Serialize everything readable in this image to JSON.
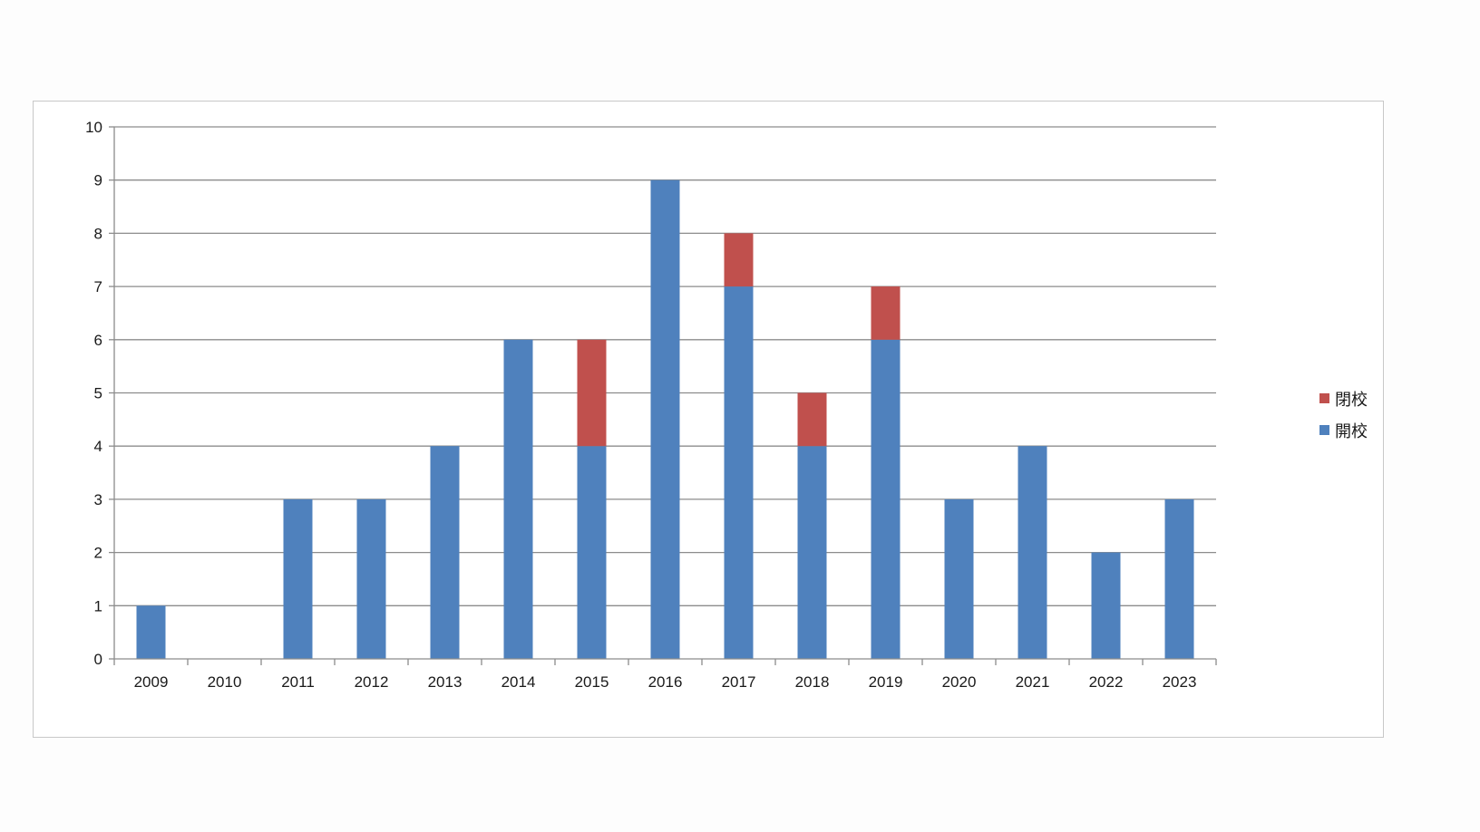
{
  "chart_data": {
    "type": "bar",
    "stacked": true,
    "categories": [
      "2009",
      "2010",
      "2011",
      "2012",
      "2013",
      "2014",
      "2015",
      "2016",
      "2017",
      "2018",
      "2019",
      "2020",
      "2021",
      "2022",
      "2023"
    ],
    "series": [
      {
        "name": "開校",
        "color": "#4f81bd",
        "values": [
          1,
          0,
          3,
          3,
          4,
          6,
          4,
          9,
          7,
          4,
          6,
          3,
          4,
          2,
          3
        ]
      },
      {
        "name": "閉校",
        "color": "#c0504d",
        "values": [
          0,
          0,
          0,
          0,
          0,
          0,
          2,
          0,
          1,
          1,
          1,
          0,
          0,
          0,
          0
        ]
      }
    ],
    "title": "",
    "xlabel": "",
    "ylabel": "",
    "ylim": [
      0,
      10
    ],
    "yticks": [
      "0",
      "1",
      "2",
      "3",
      "4",
      "5",
      "6",
      "7",
      "8",
      "9",
      "10"
    ],
    "grid": true,
    "legend": {
      "placement": "right",
      "order": [
        "閉校",
        "開校"
      ]
    }
  }
}
